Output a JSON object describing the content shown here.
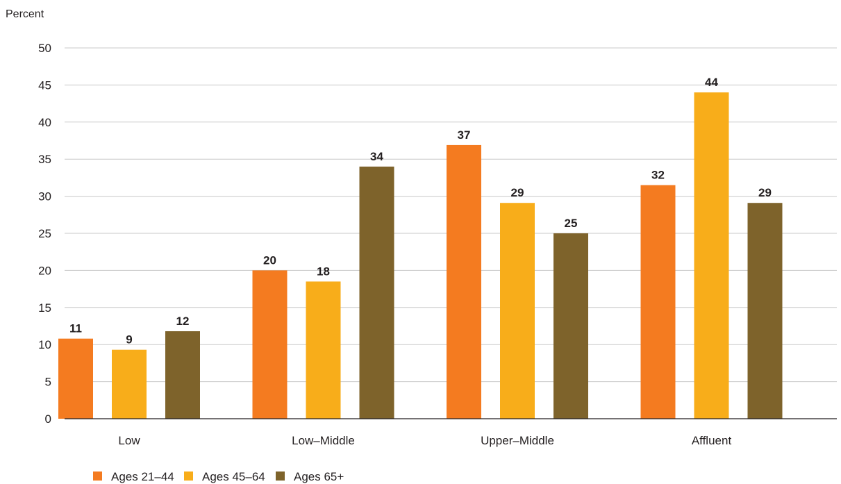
{
  "chart_data": {
    "type": "bar",
    "ylabel": "Percent",
    "xlabel": "",
    "ylim": [
      0,
      50
    ],
    "yticks": [
      0,
      5,
      10,
      15,
      20,
      25,
      30,
      35,
      40,
      45,
      50
    ],
    "grid": true,
    "legend_position": "bottom-left",
    "categories": [
      "Low",
      "Low–Middle",
      "Upper–Middle",
      "Affluent"
    ],
    "series": [
      {
        "name": "Ages 21–44",
        "color": "#f47b20",
        "values": [
          10.8,
          20,
          36.9,
          31.5
        ],
        "labels": [
          "11",
          "20",
          "37",
          "32"
        ]
      },
      {
        "name": "Ages 45–64",
        "color": "#f8ad1a",
        "values": [
          9.3,
          18.5,
          29.1,
          44
        ],
        "labels": [
          "9",
          "18",
          "29",
          "44"
        ]
      },
      {
        "name": "Ages 65+",
        "color": "#7e632b",
        "values": [
          11.8,
          34,
          25,
          29.1
        ],
        "labels": [
          "12",
          "34",
          "25",
          "29"
        ]
      }
    ]
  }
}
